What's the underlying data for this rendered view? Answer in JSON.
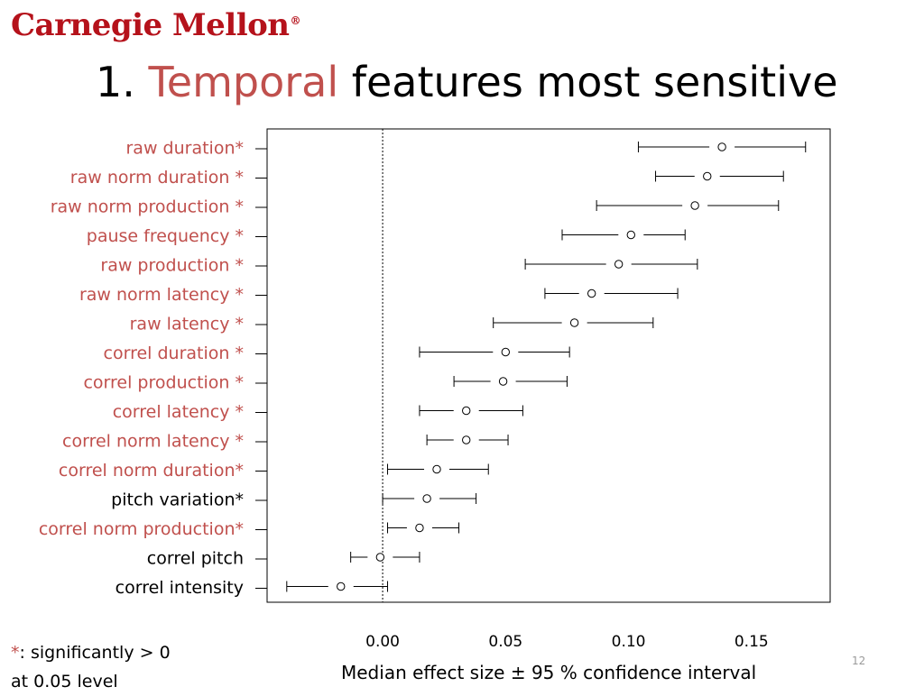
{
  "slide": {
    "logo_text": "Carnegie Mellon",
    "logo_mark": "®",
    "title_number": "1.",
    "title_highlight": "Temporal",
    "title_rest": "features most sensitive",
    "footnote_star": "*",
    "footnote_line1": ":  significantly > 0",
    "footnote_line2": "at 0.05 level",
    "page_number": "12"
  },
  "colors": {
    "brand_red": "#b5121b",
    "highlight": "#c0504d",
    "black": "#000000",
    "page_number": "#9a9a9a"
  },
  "chart_data": {
    "type": "forest",
    "xlabel": "Median effect size ± 95 % confidence interval",
    "xlim": [
      -0.047,
      0.182
    ],
    "xticks": [
      0.0,
      0.05,
      0.1,
      0.15
    ],
    "xtick_labels": [
      "0.00",
      "0.05",
      "0.10",
      "0.15"
    ],
    "reference_line": 0.0,
    "marker": "open-circle",
    "rows": [
      {
        "label": "raw duration*",
        "median": 0.138,
        "lo": 0.104,
        "hi": 0.172,
        "color": "#c0504d"
      },
      {
        "label": "raw  norm duration *",
        "median": 0.132,
        "lo": 0.111,
        "hi": 0.163,
        "color": "#c0504d"
      },
      {
        "label": "raw  norm production *",
        "median": 0.127,
        "lo": 0.087,
        "hi": 0.161,
        "color": "#c0504d"
      },
      {
        "label": "pause frequency *",
        "median": 0.101,
        "lo": 0.073,
        "hi": 0.123,
        "color": "#c0504d"
      },
      {
        "label": "raw production *",
        "median": 0.096,
        "lo": 0.058,
        "hi": 0.128,
        "color": "#c0504d"
      },
      {
        "label": "raw norm latency *",
        "median": 0.085,
        "lo": 0.066,
        "hi": 0.12,
        "color": "#c0504d"
      },
      {
        "label": "raw latency *",
        "median": 0.078,
        "lo": 0.045,
        "hi": 0.11,
        "color": "#c0504d"
      },
      {
        "label": "correl duration *",
        "median": 0.05,
        "lo": 0.015,
        "hi": 0.076,
        "color": "#c0504d"
      },
      {
        "label": "correl production *",
        "median": 0.049,
        "lo": 0.029,
        "hi": 0.075,
        "color": "#c0504d"
      },
      {
        "label": "correl latency *",
        "median": 0.034,
        "lo": 0.015,
        "hi": 0.057,
        "color": "#c0504d"
      },
      {
        "label": "correl norm latency *",
        "median": 0.034,
        "lo": 0.018,
        "hi": 0.051,
        "color": "#c0504d"
      },
      {
        "label": "correl norm duration*",
        "median": 0.022,
        "lo": 0.002,
        "hi": 0.043,
        "color": "#c0504d"
      },
      {
        "label": "pitch variation*",
        "median": 0.018,
        "lo": 0.0,
        "hi": 0.038,
        "color": "#000000"
      },
      {
        "label": "correl norm production*",
        "median": 0.015,
        "lo": 0.002,
        "hi": 0.031,
        "color": "#c0504d"
      },
      {
        "label": "correl pitch",
        "median": -0.001,
        "lo": -0.013,
        "hi": 0.015,
        "color": "#000000"
      },
      {
        "label": "correl intensity",
        "median": -0.017,
        "lo": -0.039,
        "hi": 0.002,
        "color": "#000000"
      }
    ]
  }
}
